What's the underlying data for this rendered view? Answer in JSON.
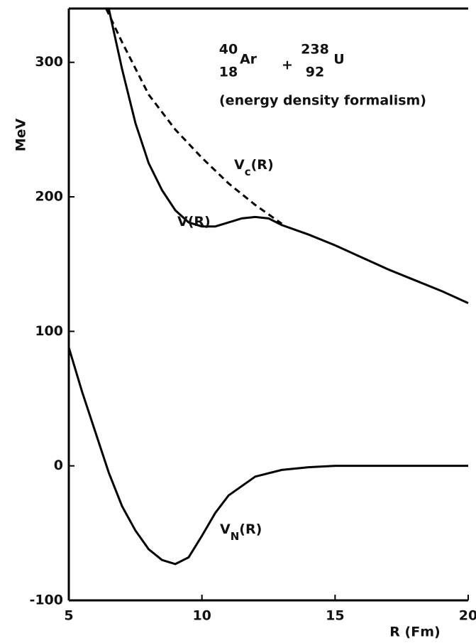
{
  "chart_data": {
    "type": "line",
    "ylabel": "MeV",
    "xlabel": "R (Fm)",
    "xlim": [
      5,
      20
    ],
    "ylim": [
      -100,
      340
    ],
    "xticks": [
      5,
      10,
      15,
      20
    ],
    "yticks": [
      -100,
      0,
      100,
      200,
      300
    ],
    "reaction": {
      "a_mass": "40",
      "a_z": "18",
      "a_sym": "Ar",
      "plus": "+",
      "b_mass": "238",
      "b_z": "92",
      "b_sym": "U"
    },
    "subtitle": "(energy density formalism)",
    "series": [
      {
        "label": {
          "main": "V(R)"
        },
        "color": "#000000",
        "dash": false,
        "x": [
          6.5,
          7,
          7.5,
          8,
          8.5,
          9,
          9.5,
          10,
          10.5,
          11,
          11.5,
          12,
          12.5,
          13,
          14,
          15,
          16,
          17,
          18,
          19,
          20
        ],
        "values": [
          340,
          295,
          255,
          225,
          205,
          190,
          181,
          178,
          178,
          181,
          184,
          185,
          184,
          179,
          172,
          164,
          155,
          146,
          138,
          130,
          121
        ]
      },
      {
        "label": {
          "main": "V",
          "sub": "c",
          "rest": "(R)"
        },
        "color": "#000000",
        "dash": true,
        "x": [
          6.4,
          7,
          8,
          9,
          10,
          11,
          12,
          13
        ],
        "values": [
          340,
          315,
          276,
          250,
          229,
          210,
          194,
          180
        ]
      },
      {
        "label": {
          "main": "V",
          "sub": "N",
          "rest": "(R)"
        },
        "color": "#000000",
        "dash": false,
        "x": [
          5,
          5.5,
          6,
          6.5,
          7,
          7.5,
          8,
          8.5,
          9,
          9.5,
          10,
          10.5,
          11,
          12,
          13,
          14,
          15,
          17,
          20
        ],
        "values": [
          88,
          55,
          25,
          -5,
          -30,
          -48,
          -62,
          -70,
          -73,
          -68,
          -52,
          -35,
          -22,
          -8,
          -3,
          -1,
          0,
          0,
          0
        ]
      }
    ]
  }
}
